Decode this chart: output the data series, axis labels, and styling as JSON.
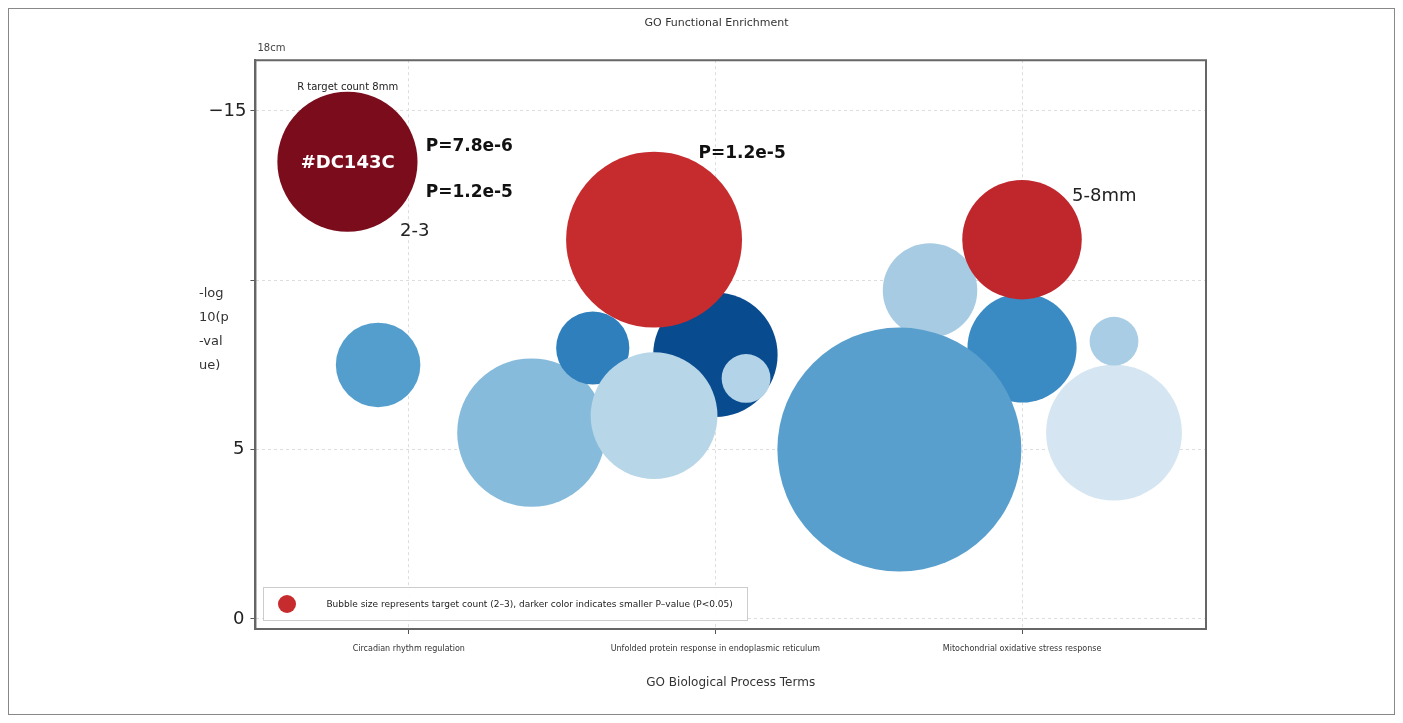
{
  "chart_data": {
    "type": "bubble",
    "title": "GO Functional Enrichment",
    "xlabel": "GO Biological Process Terms",
    "ylabel": "-log10(p-value)",
    "categories": [
      null,
      null,
      null,
      null,
      null,
      "Circadian rhythm regulation",
      null,
      null,
      null,
      null,
      null,
      null,
      null,
      null,
      null,
      "Unfolded protein response in endoplasmic reticulum",
      null,
      null,
      null,
      null,
      null,
      null,
      null,
      null,
      null,
      "Mitochondrial oxidative stress response",
      null,
      null,
      null,
      null,
      null,
      null
    ],
    "ylim": [
      -0.3,
      16.5
    ],
    "yticks": [
      0,
      5,
      {
        "value": 10,
        "label": null
      },
      {
        "value": 15,
        "label": null
      }
    ],
    "grid": true,
    "legend": "bottom left",
    "marker": "circle",
    "series": [
      {
        "values": [
          null,
          null,
          null,
          null,
          null,
          null,
          null,
          null,
          null,
          null,
          null,
          null,
          null,
          null,
          null,
          7.8,
          null,
          null,
          null,
          null,
          null,
          null,
          9.7,
          null,
          null,
          8.0,
          null,
          null,
          null,
          null,
          null,
          null
        ],
        "sizes": [
          null,
          null,
          null,
          null,
          null,
          null,
          null,
          null,
          null,
          null,
          null,
          null,
          null,
          null,
          null,
          0.26,
          null,
          null,
          null,
          null,
          null,
          null,
          0.15,
          null,
          null,
          0.2,
          null,
          null,
          null,
          null,
          null,
          null
        ],
        "colors": [
          null,
          null,
          null,
          null,
          null,
          null,
          null,
          null,
          null,
          null,
          null,
          null,
          null,
          null,
          null,
          "#084b8f",
          null,
          null,
          null,
          null,
          null,
          null,
          "#a6cbe2",
          null,
          null,
          "#3a8ac4",
          null,
          null,
          null,
          null,
          null,
          null
        ]
      },
      {
        "values": [
          null,
          null,
          null,
          null,
          7.5,
          null,
          null,
          null,
          null,
          5.5,
          null,
          8.0,
          null,
          6.0,
          null,
          null,
          7.1,
          null,
          null,
          null,
          null,
          5.0,
          null,
          null,
          null,
          null,
          null,
          null,
          5.5,
          null,
          null,
          null
        ],
        "sizes": [
          null,
          null,
          null,
          null,
          0.12,
          null,
          null,
          null,
          null,
          0.37,
          null,
          0.09,
          null,
          0.27,
          null,
          null,
          0.04,
          null,
          null,
          null,
          null,
          1,
          null,
          null,
          null,
          null,
          null,
          null,
          0.31,
          null,
          null,
          null
        ],
        "colors": [
          null,
          null,
          null,
          null,
          "#539ecd",
          null,
          null,
          null,
          null,
          "#86bbdc",
          null,
          "#2f7fbd",
          null,
          "#b7d6e8",
          null,
          null,
          "#b3d3e8",
          null,
          null,
          null,
          null,
          "#589fcd",
          null,
          null,
          null,
          null,
          null,
          null,
          "#d5e6f2",
          null,
          null,
          null
        ]
      },
      {
        "name": "Bubble size represents target count (2–3), darker color indicates smaller P–value (P<0.05)",
        "color": "#c62c2e",
        "values": [
          null,
          null,
          null,
          13.5,
          null,
          null,
          null,
          null,
          null,
          null,
          null,
          null,
          null,
          11.2,
          null,
          null,
          null,
          null,
          null,
          null,
          null,
          null,
          null,
          null,
          null,
          11.2,
          null,
          null,
          8.2,
          null,
          null,
          null
        ],
        "sizes": [
          null,
          null,
          null,
          0.33,
          null,
          null,
          null,
          null,
          null,
          null,
          null,
          null,
          null,
          0.52,
          null,
          null,
          null,
          null,
          null,
          null,
          null,
          null,
          null,
          null,
          null,
          0.24,
          null,
          null,
          0.04,
          null,
          null,
          null
        ],
        "colors": [
          null,
          null,
          null,
          "#7b0c1c",
          null,
          null,
          null,
          null,
          null,
          null,
          null,
          null,
          null,
          "#c62c2e",
          null,
          null,
          null,
          null,
          null,
          null,
          null,
          null,
          null,
          null,
          null,
          "#c0272d",
          null,
          null,
          "#a9cde4",
          null,
          null,
          null
        ]
      }
    ],
    "annotations": [
      "18cm",
      "R target count 8mm",
      "#DC143C",
      "P=7.8e-6",
      "P=1.2e-5",
      "2-3",
      "P=1.2e-5",
      "5-8mm",
      "−15"
    ]
  }
}
